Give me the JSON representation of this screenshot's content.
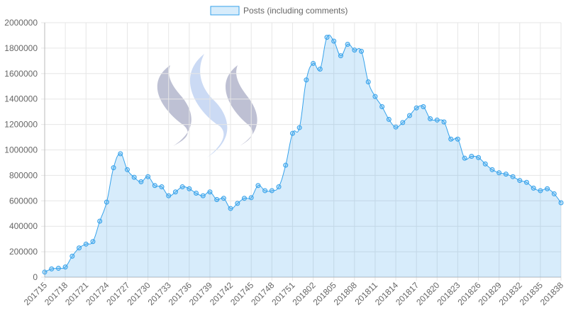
{
  "chart_data": {
    "type": "line",
    "legend": "top",
    "categories": [
      "201715",
      null,
      null,
      "201718",
      null,
      null,
      "201721",
      null,
      null,
      "201724",
      null,
      null,
      "201727",
      null,
      null,
      "201730",
      null,
      null,
      "201733",
      null,
      null,
      "201736",
      null,
      null,
      "201739",
      null,
      null,
      "201742",
      null,
      null,
      "201745",
      null,
      null,
      "201748",
      null,
      null,
      "201751",
      null,
      null,
      "201802",
      null,
      null,
      "201805",
      null,
      null,
      "201808",
      null,
      null,
      "201811",
      null,
      null,
      "201814",
      null,
      null,
      "201817",
      null,
      null,
      "201820",
      null,
      null,
      "201823",
      null,
      null,
      "201826",
      null,
      null,
      "201829",
      null,
      null,
      "201832",
      null,
      null,
      "201835",
      null,
      null,
      "201838"
    ],
    "series": [
      {
        "name": "Posts (including comments)",
        "color": "#36a2eb",
        "values": [
          40000,
          65000,
          70000,
          80000,
          165000,
          230000,
          260000,
          280000,
          440000,
          590000,
          860000,
          970000,
          845000,
          785000,
          750000,
          790000,
          720000,
          710000,
          640000,
          670000,
          710000,
          695000,
          660000,
          640000,
          670000,
          610000,
          620000,
          540000,
          580000,
          620000,
          625000,
          720000,
          680000,
          680000,
          710000,
          880000,
          1130000,
          1175000,
          1550000,
          1680000,
          1635000,
          1885000,
          1855000,
          1740000,
          1830000,
          1785000,
          1775000,
          1535000,
          1420000,
          1340000,
          1240000,
          1180000,
          1215000,
          1270000,
          1330000,
          1340000,
          1245000,
          1235000,
          1220000,
          1085000,
          1085000,
          935000,
          950000,
          940000,
          890000,
          845000,
          820000,
          810000,
          790000,
          760000,
          745000,
          700000,
          680000,
          695000,
          655000,
          585000
        ]
      }
    ],
    "ylim": [
      0,
      2000000
    ],
    "yticks": [
      0,
      200000,
      400000,
      600000,
      800000,
      1000000,
      1200000,
      1400000,
      1600000,
      1800000,
      2000000
    ],
    "grid": true
  }
}
